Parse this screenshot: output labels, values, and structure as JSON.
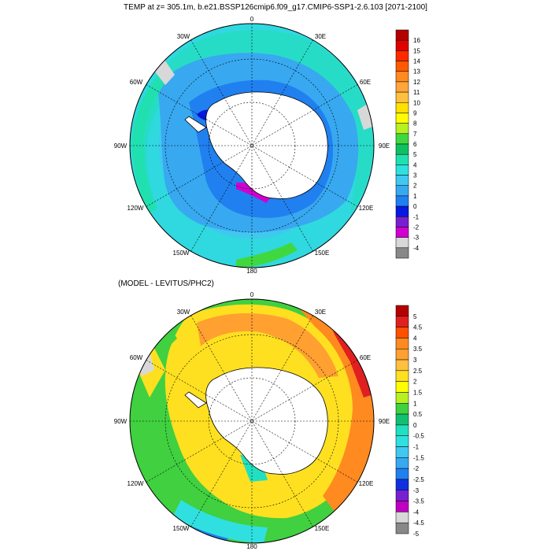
{
  "title": "TEMP at z= 305.1m, b.e21.BSSP126cmip6.f09_g17.CMIP6-SSP1-2.6.103 [2071-2100]",
  "subtitle": "(MODEL - LEVITUS/PHC2)",
  "lon_labels": {
    "top": "0",
    "tr": "30E",
    "r_up": "60E",
    "right": "90E",
    "r_dn": "120E",
    "br": "150E",
    "bottom": "180",
    "bl": "150W",
    "l_dn": "120W",
    "left": "90W",
    "l_up": "60W",
    "tl": "30W"
  },
  "map1": {
    "name": "model-temperature-map",
    "colorbar": {
      "labels": [
        "16",
        "15",
        "14",
        "13",
        "12",
        "11",
        "10",
        "9",
        "8",
        "7",
        "6",
        "5",
        "4",
        "3",
        "2",
        "1",
        "0",
        "-1",
        "-2",
        "-3",
        "-4"
      ],
      "colors": [
        "#b40000",
        "#e00000",
        "#ff2a00",
        "#ff5a00",
        "#ff8a1e",
        "#ffa53a",
        "#ffc040",
        "#ffe000",
        "#ffff00",
        "#b8f020",
        "#40d840",
        "#10c060",
        "#20e0b0",
        "#30e0e0",
        "#40c8f0",
        "#38a8f0",
        "#2080f0",
        "#0818e0",
        "#7820d0",
        "#d000d0",
        "#d8d8d8",
        "#888888"
      ]
    }
  },
  "map2": {
    "name": "model-minus-levitus-map",
    "colorbar": {
      "labels": [
        "5",
        "4.5",
        "4",
        "3.5",
        "3",
        "2.5",
        "2",
        "1.5",
        "1",
        "0.5",
        "0",
        "-0.5",
        "-1",
        "-1.5",
        "-2",
        "-2.5",
        "-3",
        "-3.5",
        "-4",
        "-4.5",
        "-5"
      ],
      "colors": [
        "#b40000",
        "#e02020",
        "#ff5000",
        "#ff8a20",
        "#ffa030",
        "#ffc040",
        "#ffe020",
        "#ffff00",
        "#b8f020",
        "#40d040",
        "#10c070",
        "#20e0c0",
        "#30e0e0",
        "#40c8f0",
        "#38a8f0",
        "#2080f0",
        "#1030e0",
        "#7820d0",
        "#c000c0",
        "#d8d8d8",
        "#888888"
      ]
    }
  }
}
